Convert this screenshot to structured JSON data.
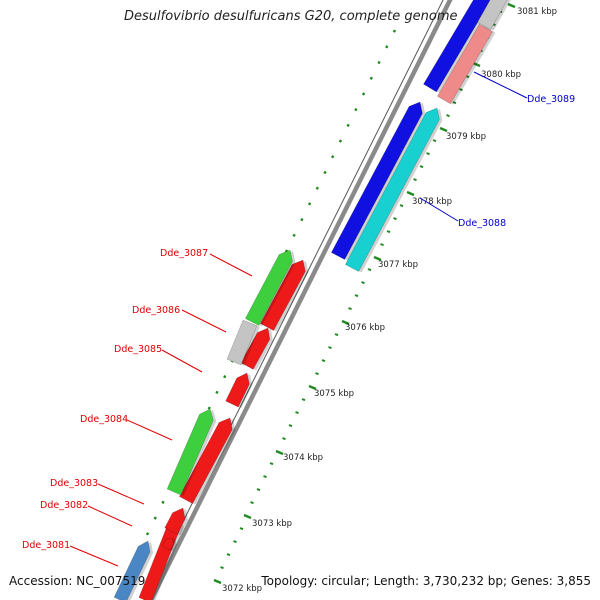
{
  "title": "Desulfovibrio desulfuricans G20, complete genome",
  "footer": {
    "accession": "Accession: NC_007519",
    "summary": "Topology: circular; Length: 3,730,232 bp; Genes: 3,855"
  },
  "colors": {
    "backbone": "#8a8a8a",
    "scale_tick": "#228b22",
    "gene_label_left": "#e00000",
    "gene_label_right": "#0000cc",
    "cds_forward": "#1010e0",
    "cds_reverse": "#ee1a1a",
    "cds_light_red": "#ee8a8a",
    "cds_cyan": "#18d0d0",
    "cds_green": "#3ecf3e",
    "cds_gray": "#c4c4c4",
    "cds_steelblue": "#4a86c4"
  },
  "scale": {
    "unit": "kbp",
    "labels": [
      "3072 kbp",
      "3073 kbp",
      "3074 kbp",
      "3075 kbp",
      "3076 kbp",
      "3077 kbp",
      "3078 kbp",
      "3079 kbp",
      "3080 kbp",
      "3081 kbp"
    ]
  },
  "gene_labels_left": [
    "Dde_3087",
    "Dde_3086",
    "Dde_3085",
    "Dde_3084",
    "Dde_3083",
    "Dde_3082",
    "Dde_3081"
  ],
  "gene_labels_right": [
    "Dde_3089",
    "Dde_3088"
  ]
}
